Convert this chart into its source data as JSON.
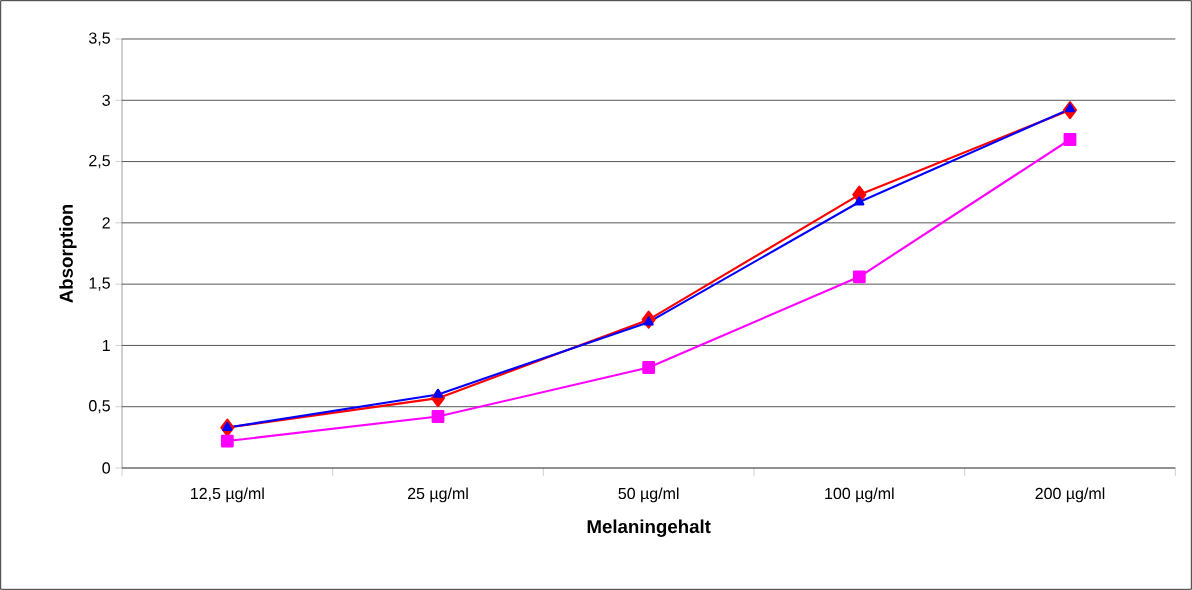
{
  "chart_data": {
    "type": "line",
    "xlabel": "Melaningehalt",
    "ylabel": "Absorption",
    "categories": [
      "12,5 µg/ml",
      "25 µg/ml",
      "50 µg/ml",
      "100 µg/ml",
      "200 µg/ml"
    ],
    "series": [
      {
        "color": "#ff0000",
        "marker": "diamond",
        "values": [
          0.33,
          0.57,
          1.21,
          2.23,
          2.92
        ]
      },
      {
        "color": "#ff00ff",
        "marker": "square",
        "values": [
          0.22,
          0.42,
          0.82,
          1.56,
          2.68
        ]
      },
      {
        "color": "#0000ff",
        "marker": "triangle",
        "values": [
          0.33,
          0.6,
          1.19,
          2.17,
          2.93
        ]
      }
    ],
    "ylim": [
      0,
      3.5
    ],
    "yticks": [
      {
        "value": 0,
        "label": "0"
      },
      {
        "value": 0.5,
        "label": "0,5"
      },
      {
        "value": 1,
        "label": "1"
      },
      {
        "value": 1.5,
        "label": "1,5"
      },
      {
        "value": 2,
        "label": "2"
      },
      {
        "value": 2.5,
        "label": "2,5"
      },
      {
        "value": 3,
        "label": "3"
      },
      {
        "value": 3.5,
        "label": "3,5"
      }
    ],
    "grid": "y"
  }
}
